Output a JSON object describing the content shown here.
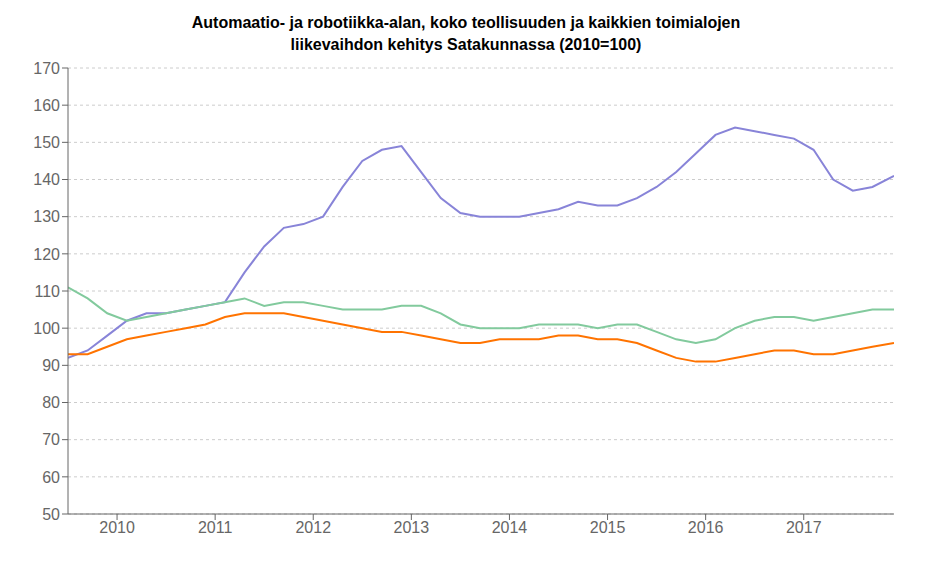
{
  "chart_data": {
    "type": "line",
    "title": "Automaatio- ja robotiikka-alan, koko teollisuuden ja kaikkien toimialojen\nliikevaihdon kehitys Satakunnassa (2010=100)",
    "x": [
      2009.5,
      2009.7,
      2009.9,
      2010.1,
      2010.3,
      2010.5,
      2010.7,
      2010.9,
      2011.1,
      2011.3,
      2011.5,
      2011.7,
      2011.9,
      2012.1,
      2012.3,
      2012.5,
      2012.7,
      2012.9,
      2013.1,
      2013.3,
      2013.5,
      2013.7,
      2013.9,
      2014.1,
      2014.3,
      2014.5,
      2014.7,
      2014.9,
      2015.1,
      2015.3,
      2015.5,
      2015.7,
      2015.9,
      2016.1,
      2016.3,
      2016.5,
      2016.7,
      2016.9,
      2017.1,
      2017.3,
      2017.5,
      2017.7,
      2017.92
    ],
    "series": [
      {
        "values": [
          92,
          94,
          98,
          102,
          104,
          104,
          105,
          106,
          107,
          115,
          122,
          127,
          128,
          130,
          138,
          145,
          148,
          149,
          142,
          135,
          131,
          130,
          130,
          130,
          131,
          132,
          134,
          133,
          133,
          135,
          138,
          142,
          147,
          152,
          154,
          153,
          152,
          151,
          148,
          140,
          137,
          138,
          141
        ]
      },
      {
        "values": [
          111,
          108,
          104,
          102,
          103,
          104,
          105,
          106,
          107,
          108,
          106,
          107,
          107,
          106,
          105,
          105,
          105,
          106,
          106,
          104,
          101,
          100,
          100,
          100,
          101,
          101,
          101,
          100,
          101,
          101,
          99,
          97,
          96,
          97,
          100,
          102,
          103,
          103,
          102,
          103,
          104,
          105,
          105
        ]
      },
      {
        "values": [
          93,
          93,
          95,
          97,
          98,
          99,
          100,
          101,
          103,
          104,
          104,
          104,
          103,
          102,
          101,
          100,
          99,
          99,
          98,
          97,
          96,
          96,
          97,
          97,
          97,
          98,
          98,
          97,
          97,
          96,
          94,
          92,
          91,
          91,
          92,
          93,
          94,
          94,
          93,
          93,
          94,
          95,
          96
        ]
      }
    ],
    "xlim": [
      2009.5,
      2017.92
    ],
    "xticks": [
      2010,
      2011,
      2012,
      2013,
      2014,
      2015,
      2016,
      2017
    ],
    "ylim": [
      50,
      170
    ],
    "yticks": [
      50,
      60,
      70,
      80,
      90,
      100,
      110,
      120,
      130,
      140,
      150,
      160,
      170
    ],
    "grid": "y"
  }
}
